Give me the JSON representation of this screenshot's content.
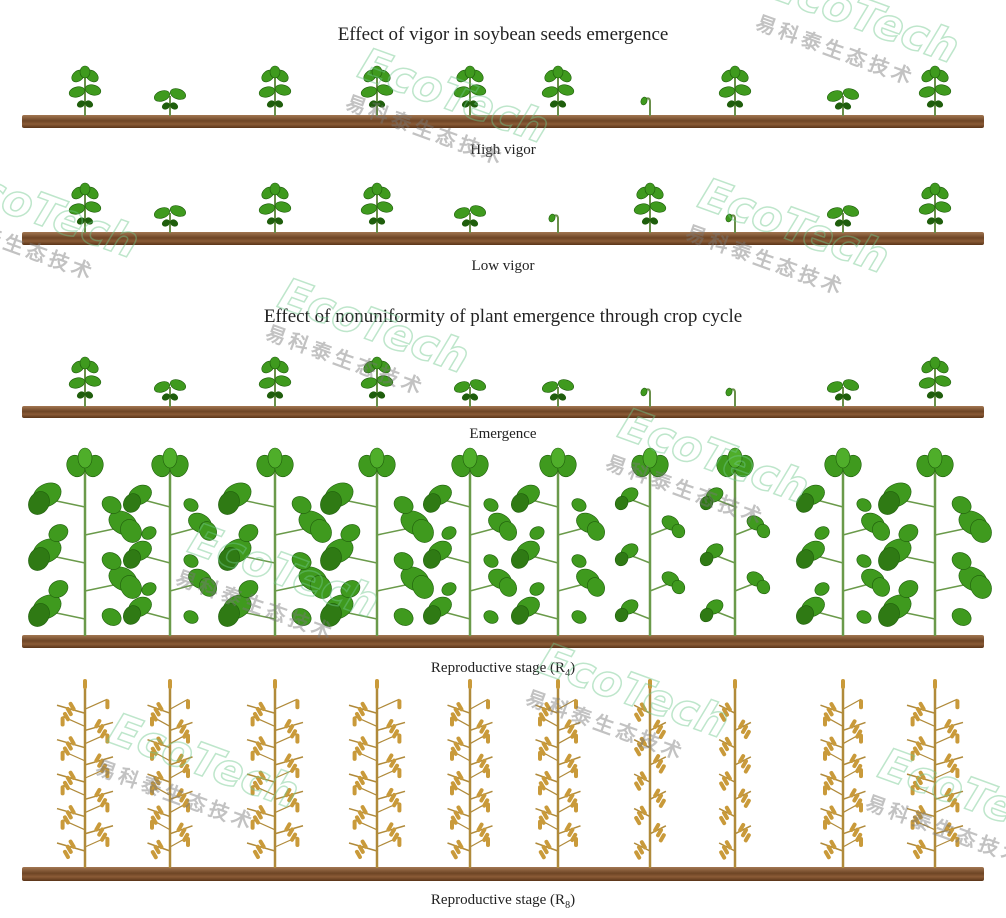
{
  "title_vigor": "Effect of vigor in soybean seeds emergence",
  "title_uniformity": "Effect of nonuniformity of plant emergence through crop cycle",
  "watermark": {
    "brand": "EcoTech",
    "cn": "易科泰生态技术"
  },
  "colors": {
    "leaf": "#3f9a1e",
    "leaf_dark": "#1f5e0c",
    "senescent": "#c99a3a",
    "soil": "#7a4a28"
  },
  "rows": [
    {
      "label": "High vigor",
      "label_sub": "",
      "stage": "seedling",
      "plants": [
        "seedling",
        "cotyledon",
        "seedling",
        "seedling",
        "seedling",
        "seedling",
        "hook",
        "seedling",
        "cotyledon",
        "seedling"
      ]
    },
    {
      "label": "Low vigor",
      "label_sub": "",
      "stage": "seedling",
      "plants": [
        "seedling",
        "cotyledon",
        "seedling",
        "seedling",
        "cotyledon",
        "hook",
        "seedling",
        "hook",
        "cotyledon",
        "seedling"
      ]
    },
    {
      "label": "Emergence",
      "label_sub": "",
      "stage": "seedling",
      "plants": [
        "seedling",
        "cotyledon",
        "seedling",
        "seedling",
        "cotyledon",
        "cotyledon",
        "hook",
        "hook",
        "cotyledon",
        "seedling"
      ]
    },
    {
      "label": "Reproductive stage (R",
      "label_sub": "4",
      "stage": "green",
      "plants": [
        "large",
        "medium",
        "large",
        "large",
        "medium",
        "medium",
        "small",
        "small",
        "medium",
        "large"
      ]
    },
    {
      "label": "Reproductive stage (R",
      "label_sub": "8",
      "stage": "dry",
      "plants": [
        "large",
        "medium",
        "large",
        "large",
        "medium",
        "medium",
        "small",
        "small",
        "medium",
        "large"
      ]
    }
  ]
}
